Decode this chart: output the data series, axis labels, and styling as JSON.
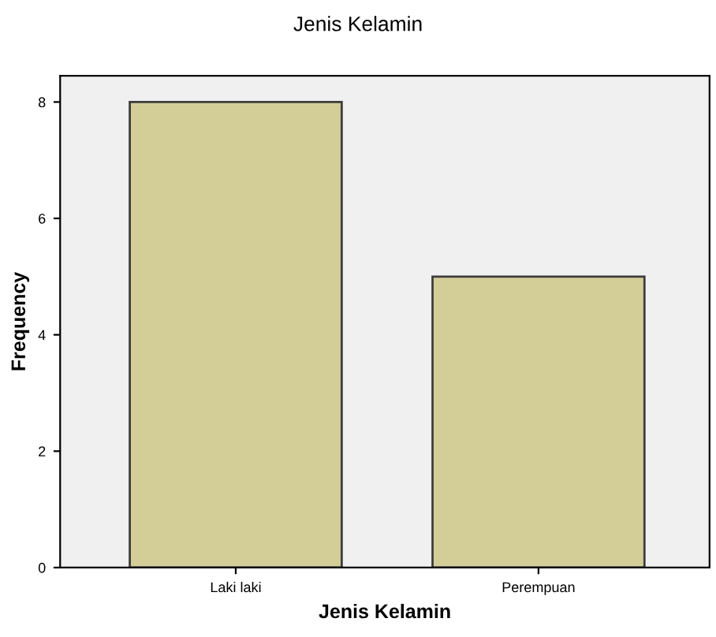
{
  "chart_data": {
    "type": "bar",
    "title": "Jenis Kelamin",
    "xlabel": "Jenis Kelamin",
    "ylabel": "Frequency",
    "categories": [
      "Laki laki",
      "Perempuan"
    ],
    "values": [
      8,
      5
    ],
    "color": "#d3ce97",
    "ylim": [
      0,
      8.45
    ],
    "yticks": [
      0,
      2,
      4,
      6,
      8
    ],
    "grid": false
  }
}
